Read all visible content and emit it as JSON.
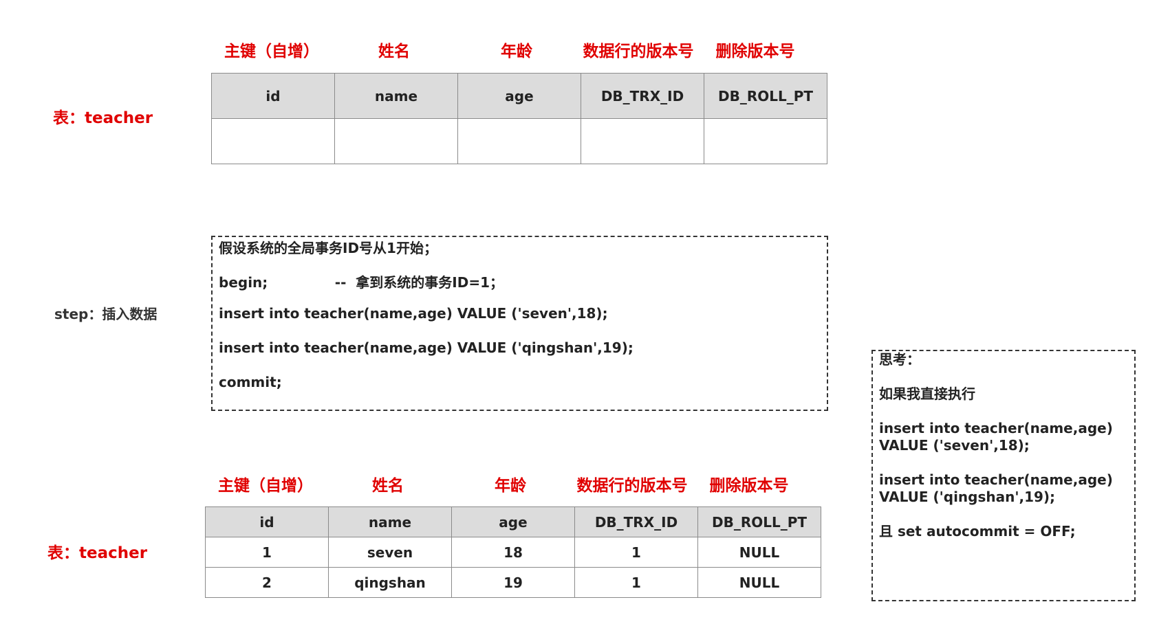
{
  "top": {
    "table_label": "表：teacher",
    "headers_cn": [
      "主键（自增）",
      "姓名",
      "年龄",
      "数据行的版本号",
      "删除版本号"
    ],
    "columns": [
      "id",
      "name",
      "age",
      "DB_TRX_ID",
      "DB_ROLL_PT"
    ],
    "rows": [
      [
        "",
        "",
        "",
        "",
        ""
      ]
    ]
  },
  "step": {
    "label": "step：插入数据",
    "lines": [
      "假设系统的全局事务ID号从1开始；",
      "begin;              --  拿到系统的事务ID=1；",
      "insert into teacher(name,age) VALUE ('seven',18);",
      "insert into teacher(name,age) VALUE ('qingshan',19);",
      "commit;"
    ]
  },
  "bottom": {
    "table_label": "表：teacher",
    "headers_cn": [
      "主键（自增）",
      "姓名",
      "年龄",
      "数据行的版本号",
      "删除版本号"
    ],
    "columns": [
      "id",
      "name",
      "age",
      "DB_TRX_ID",
      "DB_ROLL_PT"
    ],
    "rows": [
      [
        "1",
        "seven",
        "18",
        "1",
        "NULL"
      ],
      [
        "2",
        "qingshan",
        "19",
        "1",
        "NULL"
      ]
    ]
  },
  "think": {
    "lines": [
      "思考：",
      "如果我直接执行",
      "insert into teacher(name,age)",
      "VALUE ('seven',18);",
      "insert into teacher(name,age)",
      "VALUE ('qingshan',19);",
      "且 set autocommit = OFF;"
    ]
  },
  "colors": {
    "label_red": "#e00000",
    "header_bg": "#dcdcdc",
    "border": "#8a8a8a"
  }
}
